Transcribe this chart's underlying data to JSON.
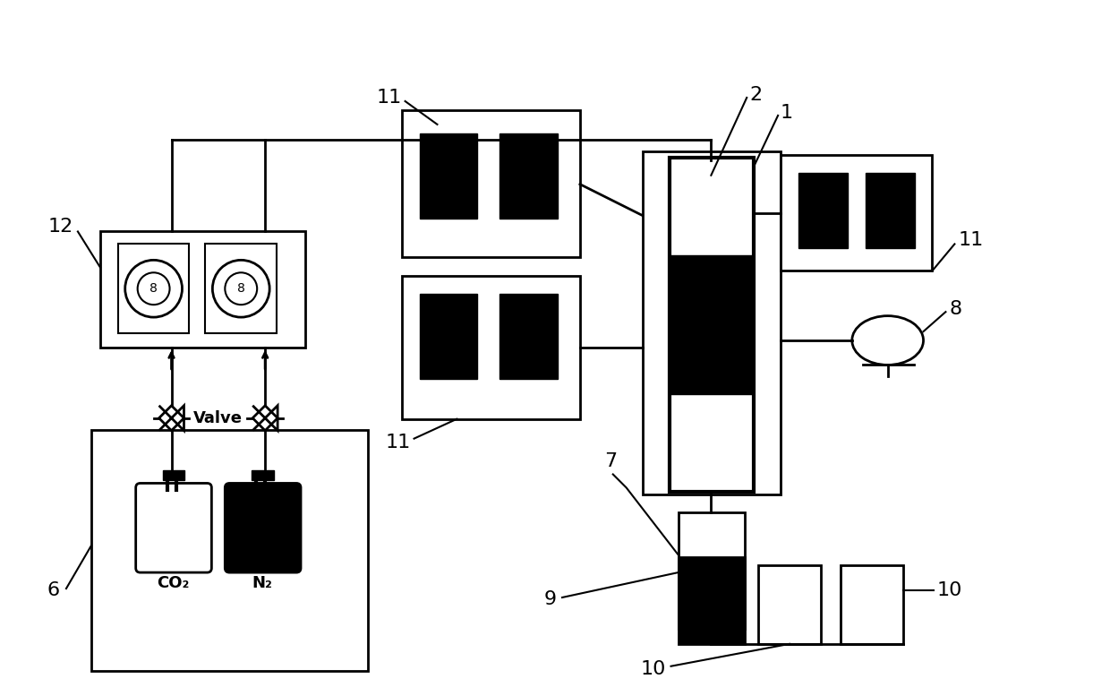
{
  "bg_color": "#ffffff",
  "line_color": "#000000",
  "valve_label": "Valve",
  "co2_label": "CO₂",
  "n2_label": "N₂",
  "figsize": [
    12.4,
    7.77
  ]
}
